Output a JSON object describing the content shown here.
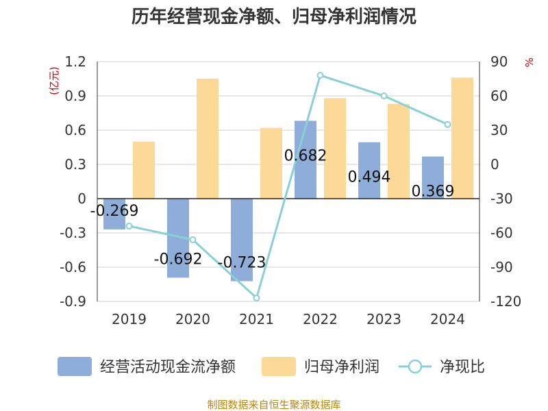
{
  "chart_data": {
    "type": "bar",
    "title": "历年经营现金净额、归母净利润情况",
    "categories": [
      "2019",
      "2020",
      "2021",
      "2022",
      "2023",
      "2024"
    ],
    "series": [
      {
        "name": "经营活动现金流净额",
        "kind": "bar",
        "axis": "left",
        "color": "#8eadd9",
        "values": [
          -0.269,
          -0.692,
          -0.723,
          0.682,
          0.494,
          0.369
        ],
        "labels": [
          "-0.269",
          "-0.692",
          "-0.723",
          "0.682",
          "0.494",
          "0.369"
        ]
      },
      {
        "name": "归母净利润",
        "kind": "bar",
        "axis": "left",
        "color": "#fdd998",
        "values": [
          0.5,
          1.05,
          0.62,
          0.88,
          0.83,
          1.06
        ]
      },
      {
        "name": "净现比",
        "kind": "line",
        "axis": "right",
        "color": "#88d0d6",
        "values": [
          -54,
          -66,
          -117,
          78,
          60,
          35
        ]
      }
    ],
    "left_axis": {
      "unit": "(亿元)",
      "ylim": [
        -0.9,
        1.2
      ],
      "ticks": [
        "1.2",
        "0.9",
        "0.6",
        "0.3",
        "0",
        "-0.3",
        "-0.6",
        "-0.9"
      ]
    },
    "right_axis": {
      "unit": "%",
      "ylim": [
        -120,
        90
      ],
      "ticks": [
        "90",
        "60",
        "30",
        "0",
        "-30",
        "-60",
        "-90",
        "-120"
      ]
    },
    "grid": true,
    "legend_position": "bottom"
  },
  "source": "制图数据来自恒生聚源数据库"
}
